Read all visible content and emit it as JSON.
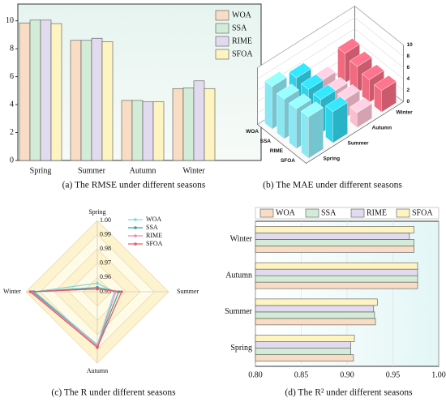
{
  "chart_data": [
    {
      "type": "bar",
      "title": "(a) The RMSE under different seasons",
      "categories": [
        "Spring",
        "Summer",
        "Autumn",
        "Winter"
      ],
      "series": [
        {
          "name": "WOA",
          "color": "#f9dcc4",
          "values": [
            9.85,
            8.6,
            4.3,
            5.15
          ]
        },
        {
          "name": "SSA",
          "color": "#d3ecd8",
          "values": [
            10.05,
            8.6,
            4.3,
            5.2
          ]
        },
        {
          "name": "RIME",
          "color": "#e2dbef",
          "values": [
            10.05,
            8.75,
            4.2,
            5.7
          ]
        },
        {
          "name": "SFOA",
          "color": "#fdf4c2",
          "values": [
            9.8,
            8.5,
            4.2,
            5.15
          ]
        }
      ],
      "ylim": [
        0,
        11.2
      ],
      "yticks": [
        0,
        2,
        4,
        6,
        8,
        10
      ],
      "legend": "upper right"
    },
    {
      "type": "bar3d",
      "title": "(b) The MAE under different seasons",
      "categories": [
        "WOA",
        "SSA",
        "RIME",
        "SFOA"
      ],
      "series": [
        {
          "name": "Spring",
          "color": "#8ae8f5",
          "values": [
            7.5,
            7.0,
            7.0,
            7.3
          ]
        },
        {
          "name": "Summer",
          "color": "#2fd3ea",
          "values": [
            6.3,
            6.0,
            5.9,
            5.5
          ]
        },
        {
          "name": "Autumn",
          "color": "#f9bfd0",
          "values": [
            3.0,
            2.8,
            3.2,
            2.6
          ]
        },
        {
          "name": "Winter",
          "color": "#f06a80",
          "values": [
            5.2,
            4.6,
            4.0,
            3.8
          ]
        }
      ],
      "zlim": [
        0,
        10
      ],
      "zticks": [
        0,
        2,
        4,
        6,
        8,
        10
      ]
    },
    {
      "type": "radar",
      "title": "(c) The R under different seasons",
      "categories": [
        "Spring",
        "Summer",
        "Autumn",
        "Winter"
      ],
      "series": [
        {
          "name": "WOA",
          "color": "#7fd6e8",
          "values": [
            0.956,
            0.962,
            0.987,
            0.994
          ]
        },
        {
          "name": "SSA",
          "color": "#3a9ea5",
          "values": [
            0.953,
            0.965,
            0.988,
            0.995
          ]
        },
        {
          "name": "RIME",
          "color": "#e58fb0",
          "values": [
            0.952,
            0.963,
            0.988,
            0.996
          ]
        },
        {
          "name": "SFOA",
          "color": "#e05a6a",
          "values": [
            0.952,
            0.967,
            0.989,
            0.997
          ]
        }
      ],
      "rlim": [
        0.95,
        1.0
      ],
      "rticks": [
        0.95,
        0.96,
        0.97,
        0.98,
        0.99,
        {
          "value": 1.0,
          "label": "1.00"
        }
      ],
      "legend": "upper right"
    },
    {
      "type": "barh",
      "title": "(d) The R² under different seasons",
      "categories": [
        "Spring",
        "Summer",
        "Autumn",
        "Winter"
      ],
      "series": [
        {
          "name": "WOA",
          "color": "#f9dcc4",
          "values": [
            0.907,
            0.931,
            0.977,
            0.973
          ]
        },
        {
          "name": "SSA",
          "color": "#d3ecd8",
          "values": [
            0.904,
            0.93,
            0.977,
            0.973
          ]
        },
        {
          "name": "RIME",
          "color": "#e2dbef",
          "values": [
            0.904,
            0.929,
            0.977,
            0.968
          ]
        },
        {
          "name": "SFOA",
          "color": "#fdf4c2",
          "values": [
            0.908,
            0.933,
            0.977,
            0.973
          ]
        }
      ],
      "xlim": [
        0.8,
        1.0
      ],
      "xticks": [
        {
          "value": 0.8,
          "label": "0.80"
        },
        0.85,
        {
          "value": 0.9,
          "label": "0.90"
        },
        0.95,
        {
          "value": 1.0,
          "label": "1.00"
        }
      ],
      "legend": "top"
    }
  ]
}
